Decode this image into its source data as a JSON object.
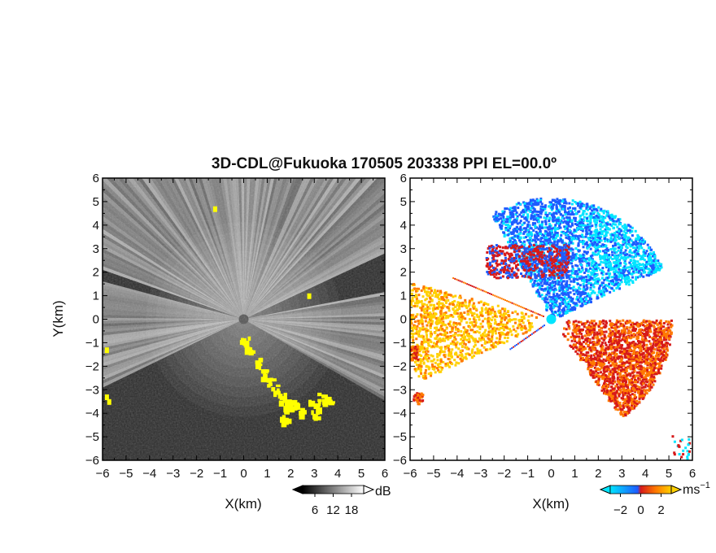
{
  "figure": {
    "title": "3D-CDL@Fukuoka 170505 203338 PPI EL=00.0º"
  },
  "chart_data": [
    {
      "type": "heatmap",
      "panel": "left",
      "quantity_unit": "dB",
      "xlabel": "X(km)",
      "ylabel": "Y(km)",
      "xlim": [
        -6,
        6
      ],
      "ylim": [
        -6,
        6
      ],
      "x_ticks": [
        "−6",
        "−5",
        "−4",
        "−3",
        "−2",
        "−1",
        "0",
        "1",
        "2",
        "3",
        "4",
        "5",
        "6"
      ],
      "y_ticks": [
        "6",
        "5",
        "4",
        "3",
        "2",
        "1",
        "0",
        "−1",
        "−2",
        "−3",
        "−4",
        "−5",
        "−6"
      ],
      "colorbar": {
        "unit": "dB",
        "colors": [
          "#000000",
          "#ffffff"
        ],
        "range": [
          2,
          22
        ],
        "tick_labels": [
          "6",
          "12",
          "18"
        ],
        "ticks": [
          6,
          12,
          18
        ],
        "extend": "both"
      },
      "scan_center": [
        0,
        0
      ],
      "bright_sector_deg": [
        [
          -30,
          10
        ],
        [
          25,
          160
        ],
        [
          165,
          205
        ]
      ],
      "highlight_color": "#ffff00",
      "highlight_regions": "yellow echoes along south-east arc and west edge",
      "grid": false
    },
    {
      "type": "heatmap",
      "panel": "right",
      "quantity_unit": "ms−1",
      "xlabel": "X(km)",
      "xlim": [
        -6,
        6
      ],
      "ylim": [
        -6,
        6
      ],
      "x_ticks": [
        "−6",
        "−5",
        "−4",
        "−3",
        "−2",
        "−1",
        "0",
        "1",
        "2",
        "3",
        "4",
        "5",
        "6"
      ],
      "y_ticks": [
        "6",
        "5",
        "4",
        "3",
        "2",
        "1",
        "0",
        "−1",
        "−2",
        "−3",
        "−4",
        "−5",
        "−6"
      ],
      "colorbar": {
        "unit": "ms",
        "unit_sup": "−1",
        "colors": [
          "#00e5ff",
          "#1e5bff",
          "#d61a1a",
          "#ff7a00",
          "#ffd000"
        ],
        "range": [
          -3,
          3
        ],
        "tick_labels": [
          "−2",
          "0",
          "2"
        ],
        "ticks": [
          -2,
          0,
          2
        ],
        "extend": "both"
      },
      "regions": [
        {
          "name": "north-east approaching",
          "colors": [
            "#1e5bff",
            "#00e5ff"
          ]
        },
        {
          "name": "south-east receding",
          "colors": [
            "#d61a1a",
            "#ff7a00"
          ]
        },
        {
          "name": "west receding",
          "colors": [
            "#ff7a00",
            "#ffd000"
          ]
        }
      ],
      "grid": false
    }
  ]
}
